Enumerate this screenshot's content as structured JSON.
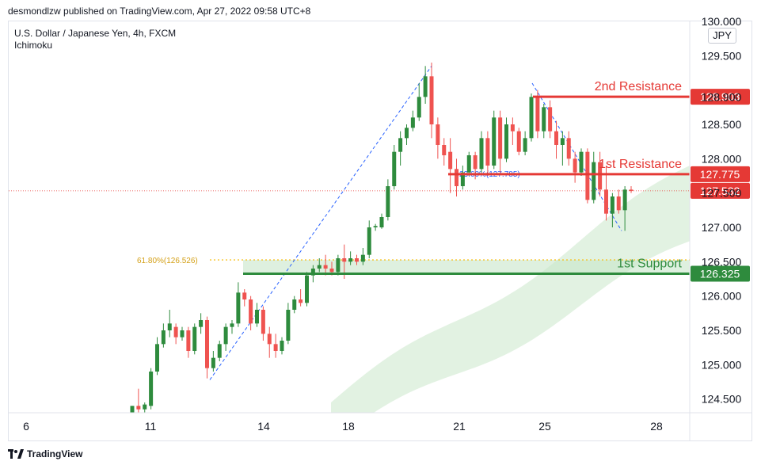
{
  "header": {
    "publisher_line": "desmondlzw published on TradingView.com, Apr 27, 2022 09:58 UTC+8"
  },
  "symbol": {
    "name": "U.S. Dollar / Japanese Yen, 4h, FXCM",
    "indicator": "Ichimoku"
  },
  "currency": "JPY",
  "footer": {
    "brand": "TradingView"
  },
  "colors": {
    "up": "#26a69a",
    "up_candle": "#2e8b3d",
    "down_candle": "#ef5350",
    "resistance": "#e53935",
    "support": "#2e8b3d",
    "fib": "#f7c325",
    "trend_line": "#2962ff",
    "cloud": "#d8eed8",
    "price_line": "#e53935"
  },
  "chart_data": {
    "type": "candlestick",
    "x_ticks": [
      "6",
      "11",
      "14",
      "18",
      "21",
      "25",
      "28"
    ],
    "y_ticks": [
      "124.500",
      "125.000",
      "125.500",
      "126.000",
      "126.500",
      "127.000",
      "127.500",
      "128.000",
      "128.500",
      "128.900",
      "129.500",
      "130.000"
    ],
    "y_range": [
      124.3,
      130.0
    ],
    "levels": [
      {
        "name": "2nd Resistance",
        "value": 128.903,
        "label": "128.903",
        "kind": "resistance"
      },
      {
        "name": "1st Resistance",
        "value": 127.775,
        "label": "127.775",
        "kind": "resistance"
      },
      {
        "name": "1st Support",
        "value": 126.325,
        "label": "126.325",
        "kind": "support"
      }
    ],
    "current_price": {
      "value": 127.532,
      "label": "127.532"
    },
    "fib_levels": [
      {
        "label": "61.80%(126.526)",
        "value": 126.526
      },
      {
        "label": "23.60%(127.785)",
        "value": 127.785
      }
    ],
    "candles": [
      {
        "o": 124.3,
        "h": 124.4,
        "l": 124.2,
        "c": 124.4
      },
      {
        "o": 124.4,
        "h": 124.65,
        "l": 124.3,
        "c": 124.35
      },
      {
        "o": 124.35,
        "h": 124.45,
        "l": 124.3,
        "c": 124.42
      },
      {
        "o": 124.4,
        "h": 124.95,
        "l": 124.35,
        "c": 124.9
      },
      {
        "o": 124.9,
        "h": 125.4,
        "l": 124.85,
        "c": 125.3
      },
      {
        "o": 125.3,
        "h": 125.6,
        "l": 125.25,
        "c": 125.5
      },
      {
        "o": 125.5,
        "h": 125.8,
        "l": 125.4,
        "c": 125.6
      },
      {
        "o": 125.55,
        "h": 125.6,
        "l": 125.3,
        "c": 125.4
      },
      {
        "o": 125.4,
        "h": 125.55,
        "l": 125.35,
        "c": 125.5
      },
      {
        "o": 125.5,
        "h": 125.55,
        "l": 125.1,
        "c": 125.2
      },
      {
        "o": 125.2,
        "h": 125.6,
        "l": 125.15,
        "c": 125.55
      },
      {
        "o": 125.55,
        "h": 125.75,
        "l": 125.45,
        "c": 125.65
      },
      {
        "o": 125.65,
        "h": 125.7,
        "l": 124.8,
        "c": 124.95
      },
      {
        "o": 124.95,
        "h": 125.2,
        "l": 124.9,
        "c": 125.1
      },
      {
        "o": 125.1,
        "h": 125.35,
        "l": 125.05,
        "c": 125.3
      },
      {
        "o": 125.3,
        "h": 125.6,
        "l": 125.2,
        "c": 125.55
      },
      {
        "o": 125.55,
        "h": 125.65,
        "l": 125.45,
        "c": 125.6
      },
      {
        "o": 125.6,
        "h": 126.2,
        "l": 125.55,
        "c": 126.05
      },
      {
        "o": 126.05,
        "h": 126.1,
        "l": 125.85,
        "c": 125.95
      },
      {
        "o": 125.95,
        "h": 126.0,
        "l": 125.5,
        "c": 125.6
      },
      {
        "o": 125.6,
        "h": 125.9,
        "l": 125.55,
        "c": 125.8
      },
      {
        "o": 125.8,
        "h": 125.85,
        "l": 125.35,
        "c": 125.45
      },
      {
        "o": 125.45,
        "h": 125.55,
        "l": 125.1,
        "c": 125.3
      },
      {
        "o": 125.3,
        "h": 125.45,
        "l": 125.1,
        "c": 125.2
      },
      {
        "o": 125.2,
        "h": 125.4,
        "l": 125.15,
        "c": 125.35
      },
      {
        "o": 125.35,
        "h": 125.9,
        "l": 125.3,
        "c": 125.8
      },
      {
        "o": 125.8,
        "h": 126.0,
        "l": 125.75,
        "c": 125.95
      },
      {
        "o": 125.95,
        "h": 126.1,
        "l": 125.85,
        "c": 125.9
      },
      {
        "o": 125.9,
        "h": 126.35,
        "l": 125.85,
        "c": 126.3
      },
      {
        "o": 126.3,
        "h": 126.45,
        "l": 126.2,
        "c": 126.4
      },
      {
        "o": 126.4,
        "h": 126.55,
        "l": 126.35,
        "c": 126.45
      },
      {
        "o": 126.45,
        "h": 126.6,
        "l": 126.3,
        "c": 126.4
      },
      {
        "o": 126.4,
        "h": 126.5,
        "l": 126.3,
        "c": 126.35
      },
      {
        "o": 126.35,
        "h": 126.6,
        "l": 126.3,
        "c": 126.55
      },
      {
        "o": 126.55,
        "h": 126.75,
        "l": 126.25,
        "c": 126.5
      },
      {
        "o": 126.5,
        "h": 126.65,
        "l": 126.45,
        "c": 126.55
      },
      {
        "o": 126.55,
        "h": 126.6,
        "l": 126.45,
        "c": 126.5
      },
      {
        "o": 126.5,
        "h": 126.7,
        "l": 126.45,
        "c": 126.6
      },
      {
        "o": 126.6,
        "h": 127.1,
        "l": 126.55,
        "c": 127.0
      },
      {
        "o": 127.0,
        "h": 127.05,
        "l": 126.95,
        "c": 127.02
      },
      {
        "o": 127.0,
        "h": 127.2,
        "l": 126.98,
        "c": 127.15
      },
      {
        "o": 127.15,
        "h": 127.7,
        "l": 127.1,
        "c": 127.6
      },
      {
        "o": 127.6,
        "h": 128.2,
        "l": 127.55,
        "c": 128.1
      },
      {
        "o": 128.1,
        "h": 128.4,
        "l": 127.9,
        "c": 128.3
      },
      {
        "o": 128.3,
        "h": 128.5,
        "l": 128.2,
        "c": 128.45
      },
      {
        "o": 128.45,
        "h": 128.7,
        "l": 128.4,
        "c": 128.6
      },
      {
        "o": 128.6,
        "h": 129.1,
        "l": 128.55,
        "c": 128.9
      },
      {
        "o": 128.9,
        "h": 129.35,
        "l": 128.8,
        "c": 129.2
      },
      {
        "o": 129.2,
        "h": 129.4,
        "l": 128.3,
        "c": 128.5
      },
      {
        "o": 128.5,
        "h": 128.6,
        "l": 128.0,
        "c": 128.2
      },
      {
        "o": 128.2,
        "h": 128.3,
        "l": 127.9,
        "c": 128.05
      },
      {
        "o": 128.1,
        "h": 128.3,
        "l": 127.5,
        "c": 127.85
      },
      {
        "o": 127.85,
        "h": 128.0,
        "l": 127.45,
        "c": 127.6
      },
      {
        "o": 127.6,
        "h": 127.9,
        "l": 127.55,
        "c": 127.8
      },
      {
        "o": 127.8,
        "h": 128.1,
        "l": 127.75,
        "c": 128.05
      },
      {
        "o": 128.05,
        "h": 128.1,
        "l": 127.7,
        "c": 127.85
      },
      {
        "o": 127.85,
        "h": 128.4,
        "l": 127.8,
        "c": 128.3
      },
      {
        "o": 128.3,
        "h": 128.4,
        "l": 127.75,
        "c": 127.9
      },
      {
        "o": 127.9,
        "h": 128.7,
        "l": 127.85,
        "c": 128.6
      },
      {
        "o": 128.6,
        "h": 128.7,
        "l": 127.8,
        "c": 128.0
      },
      {
        "o": 128.0,
        "h": 128.6,
        "l": 127.95,
        "c": 128.5
      },
      {
        "o": 128.5,
        "h": 128.6,
        "l": 128.2,
        "c": 128.4
      },
      {
        "o": 128.4,
        "h": 128.45,
        "l": 128.05,
        "c": 128.1
      },
      {
        "o": 128.1,
        "h": 128.4,
        "l": 128.05,
        "c": 128.3
      },
      {
        "o": 128.3,
        "h": 128.95,
        "l": 128.25,
        "c": 128.9
      },
      {
        "o": 128.9,
        "h": 129.0,
        "l": 128.3,
        "c": 128.4
      },
      {
        "o": 128.4,
        "h": 128.8,
        "l": 128.3,
        "c": 128.75
      },
      {
        "o": 128.75,
        "h": 128.85,
        "l": 128.3,
        "c": 128.4
      },
      {
        "o": 128.4,
        "h": 128.55,
        "l": 128.0,
        "c": 128.2
      },
      {
        "o": 128.2,
        "h": 128.4,
        "l": 127.9,
        "c": 128.3
      },
      {
        "o": 128.3,
        "h": 128.4,
        "l": 127.9,
        "c": 128.0
      },
      {
        "o": 128.0,
        "h": 128.1,
        "l": 127.65,
        "c": 127.8
      },
      {
        "o": 127.8,
        "h": 128.15,
        "l": 127.75,
        "c": 128.1
      },
      {
        "o": 128.1,
        "h": 128.15,
        "l": 127.35,
        "c": 127.4
      },
      {
        "o": 127.4,
        "h": 128.1,
        "l": 127.35,
        "c": 127.95
      },
      {
        "o": 127.95,
        "h": 128.1,
        "l": 127.45,
        "c": 127.55
      },
      {
        "o": 127.55,
        "h": 127.9,
        "l": 127.1,
        "c": 127.2
      },
      {
        "o": 127.2,
        "h": 127.5,
        "l": 127.0,
        "c": 127.45
      },
      {
        "o": 127.45,
        "h": 127.55,
        "l": 127.2,
        "c": 127.25
      },
      {
        "o": 127.25,
        "h": 127.6,
        "l": 126.95,
        "c": 127.55
      },
      {
        "o": 127.55,
        "h": 127.6,
        "l": 127.5,
        "c": 127.53
      }
    ]
  }
}
